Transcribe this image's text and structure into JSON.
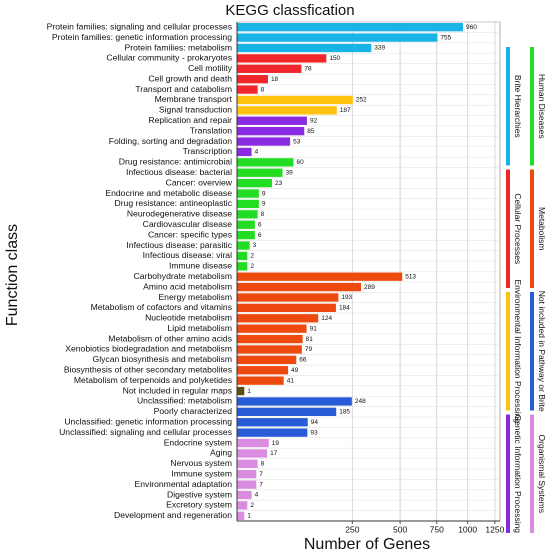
{
  "chart_data": {
    "type": "bar",
    "orientation": "horizontal",
    "title": "KEGG classfication",
    "x_label": "Number of Genes",
    "y_label": "Function class",
    "x_scale": "sqrt",
    "xlim": [
      0,
      1300
    ],
    "xticks": [
      250,
      500,
      750,
      1000,
      1250
    ],
    "grid": true,
    "legend": "right",
    "groups": [
      {
        "name": "Brite Hierarchies",
        "color": "#19b3e6",
        "categories": [
          "Protein families: signaling and cellular processes",
          "Protein families: genetic information processing",
          "Protein families: metabolism"
        ],
        "values": [
          960,
          755,
          339
        ]
      },
      {
        "name": "Cellular Processes",
        "color": "#f0262a",
        "categories": [
          "Cellular community - prokaryotes",
          "Cell motility",
          "Cell growth and death",
          "Transport and catabolism"
        ],
        "values": [
          150,
          78,
          18,
          8
        ]
      },
      {
        "name": "Environmental Information Processing",
        "color": "#ffc20e",
        "categories": [
          "Membrane transport",
          "Signal transduction"
        ],
        "values": [
          252,
          187
        ]
      },
      {
        "name": "Genetic Information Processing",
        "color": "#8a2be2",
        "categories": [
          "Replication and repair",
          "Translation",
          "Folding, sorting and degradation",
          "Transcription"
        ],
        "values": [
          92,
          85,
          53,
          4
        ]
      },
      {
        "name": "Human Diseases",
        "color": "#22dd22",
        "categories": [
          "Drug resistance: antimicrobial",
          "Infectious disease: bacterial",
          "Cancer: overview",
          "Endocrine and metabolic disease",
          "Drug resistance: antineoplastic",
          "Neurodegenerative disease",
          "Cardiovascular disease",
          "Cancer: specific types",
          "Infectious disease: parasitic",
          "Infectious disease: viral",
          "Immune disease"
        ],
        "values": [
          60,
          39,
          23,
          9,
          9,
          8,
          6,
          6,
          3,
          2,
          2
        ]
      },
      {
        "name": "Metabolism",
        "color": "#ee4a10",
        "categories": [
          "Carbohydrate metabolism",
          "Amino acid metabolism",
          "Energy metabolism",
          "Metabolism of cofactors and vitamins",
          "Nucleotide metabolism",
          "Lipid metabolism",
          "Metabolism of other amino acids",
          "Xenobiotics biodegradation and metabolism",
          "Glycan biosynthesis and metabolism",
          "Biosynthesis of other secondary metabolites",
          "Metabolism of terpenoids and polyketides",
          "Not included in regular maps"
        ],
        "values": [
          513,
          289,
          193,
          184,
          124,
          91,
          81,
          79,
          66,
          49,
          41,
          1
        ],
        "bar_colors": [
          "#ee4a10",
          "#ee4a10",
          "#ee4a10",
          "#ee4a10",
          "#ee4a10",
          "#ee4a10",
          "#ee4a10",
          "#ee4a10",
          "#ee4a10",
          "#ee4a10",
          "#ee4a10",
          "#5c5210"
        ]
      },
      {
        "name": "Not included in Pathway or Brite",
        "color": "#2a5bd7",
        "categories": [
          "Unclassified: metabolism",
          "Poorly characterized",
          "Unclassified: genetic information processing",
          "Unclassified: signaling and cellular processes"
        ],
        "values": [
          248,
          185,
          94,
          93
        ]
      },
      {
        "name": "Organismal Systems",
        "color": "#d98ce0",
        "categories": [
          "Endocrine system",
          "Aging",
          "Nervous system",
          "Immune system",
          "Environmental adaptation",
          "Digestive system",
          "Excretory system",
          "Development and regeneration"
        ],
        "values": [
          19,
          17,
          8,
          7,
          7,
          4,
          2,
          1
        ]
      }
    ]
  }
}
